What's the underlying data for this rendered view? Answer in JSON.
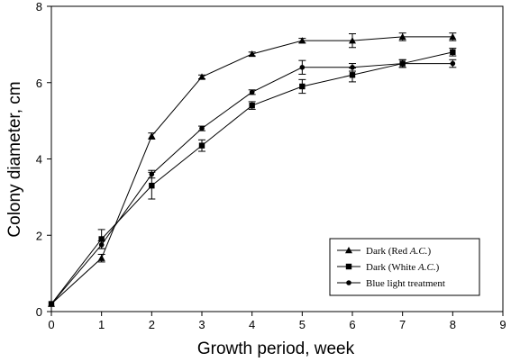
{
  "chart_data": {
    "type": "line",
    "xlabel": "Growth period, week",
    "ylabel": "Colony diameter, cm",
    "xlim": [
      0,
      9
    ],
    "ylim": [
      0,
      8
    ],
    "x_ticks": [
      "0",
      "1",
      "2",
      "3",
      "4",
      "5",
      "6",
      "7",
      "8",
      "9"
    ],
    "y_ticks": [
      "0",
      "2",
      "4",
      "6",
      "8"
    ],
    "grid": false,
    "legend_position": "bottom-right",
    "series": [
      {
        "name": "Dark (Red A.C.)",
        "name_parts": [
          "Dark (Red ",
          "A.C.",
          ")"
        ],
        "marker": "triangle",
        "x": [
          0,
          1,
          2,
          3,
          4,
          5,
          6,
          7,
          8
        ],
        "y": [
          0.2,
          1.4,
          4.6,
          6.15,
          6.75,
          7.1,
          7.1,
          7.2,
          7.2
        ],
        "err": [
          0,
          0.1,
          0.08,
          0.05,
          0.05,
          0.06,
          0.18,
          0.1,
          0.1
        ]
      },
      {
        "name": "Dark (White A.C.)",
        "name_parts": [
          "Dark (White ",
          "A.C.",
          ")"
        ],
        "marker": "square",
        "x": [
          0,
          1,
          2,
          3,
          4,
          5,
          6,
          7,
          8
        ],
        "y": [
          0.2,
          1.9,
          3.3,
          4.35,
          5.4,
          5.9,
          6.2,
          6.5,
          6.8
        ],
        "err": [
          0,
          0.25,
          0.35,
          0.15,
          0.1,
          0.18,
          0.18,
          0.1,
          0.1
        ]
      },
      {
        "name": "Blue light treatment",
        "name_parts": [
          "Blue light treatment",
          "",
          ""
        ],
        "marker": "circle",
        "x": [
          0,
          1,
          2,
          3,
          4,
          5,
          6,
          7,
          8
        ],
        "y": [
          0.2,
          1.75,
          3.6,
          4.8,
          5.75,
          6.4,
          6.4,
          6.5,
          6.5
        ],
        "err": [
          0,
          0.1,
          0.1,
          0.06,
          0.06,
          0.18,
          0.1,
          0.1,
          0.1
        ]
      }
    ]
  }
}
